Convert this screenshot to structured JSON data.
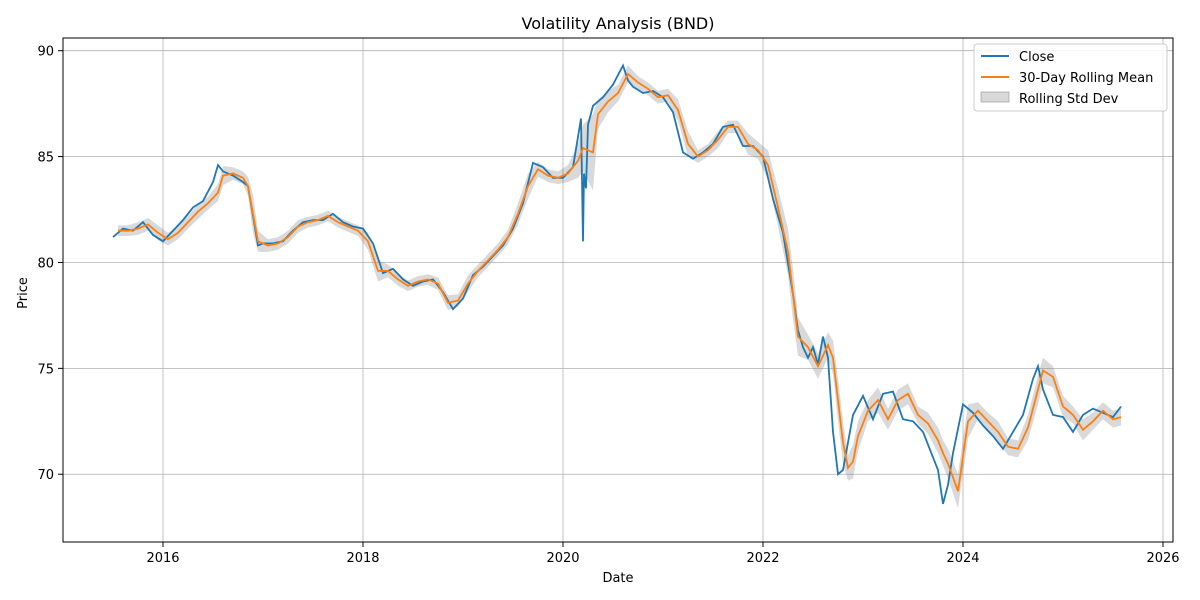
{
  "chart_data": {
    "type": "line",
    "title": "Volatility Analysis (BND)",
    "xlabel": "Date",
    "ylabel": "Price",
    "xlim": [
      2015.0,
      2026.1
    ],
    "ylim": [
      66.8,
      90.6
    ],
    "x_ticks": [
      2016,
      2018,
      2020,
      2022,
      2024,
      2026
    ],
    "x_tick_labels": [
      "2016",
      "2018",
      "2020",
      "2022",
      "2024",
      "2026"
    ],
    "y_ticks": [
      70,
      75,
      80,
      85,
      90
    ],
    "y_tick_labels": [
      "70",
      "75",
      "80",
      "85",
      "90"
    ],
    "grid": true,
    "legend_position": "top-right",
    "legend": {
      "close": "Close",
      "mean": "30-Day Rolling Mean",
      "std": "Rolling Std Dev"
    },
    "colors": {
      "close": "#1f77b4",
      "mean": "#ff7f0e",
      "band": "#808080"
    },
    "series": [
      {
        "name": "Close",
        "x": [
          2015.5,
          2015.6,
          2015.7,
          2015.8,
          2015.9,
          2016.0,
          2016.1,
          2016.2,
          2016.3,
          2016.4,
          2016.5,
          2016.55,
          2016.6,
          2016.7,
          2016.8,
          2016.85,
          2016.9,
          2016.95,
          2017.0,
          2017.1,
          2017.2,
          2017.3,
          2017.4,
          2017.5,
          2017.6,
          2017.7,
          2017.8,
          2017.9,
          2018.0,
          2018.1,
          2018.2,
          2018.3,
          2018.4,
          2018.5,
          2018.6,
          2018.7,
          2018.8,
          2018.9,
          2019.0,
          2019.1,
          2019.2,
          2019.3,
          2019.4,
          2019.5,
          2019.6,
          2019.7,
          2019.8,
          2019.9,
          2020.0,
          2020.1,
          2020.18,
          2020.2,
          2020.21,
          2020.23,
          2020.25,
          2020.3,
          2020.4,
          2020.5,
          2020.6,
          2020.65,
          2020.7,
          2020.8,
          2020.9,
          2021.0,
          2021.1,
          2021.2,
          2021.3,
          2021.4,
          2021.5,
          2021.6,
          2021.7,
          2021.8,
          2021.9,
          2022.0,
          2022.1,
          2022.2,
          2022.3,
          2022.35,
          2022.4,
          2022.45,
          2022.5,
          2022.55,
          2022.6,
          2022.65,
          2022.7,
          2022.75,
          2022.8,
          2022.85,
          2022.9,
          2023.0,
          2023.1,
          2023.2,
          2023.3,
          2023.4,
          2023.5,
          2023.6,
          2023.7,
          2023.75,
          2023.8,
          2023.85,
          2023.9,
          2024.0,
          2024.1,
          2024.2,
          2024.3,
          2024.4,
          2024.5,
          2024.6,
          2024.7,
          2024.75,
          2024.8,
          2024.9,
          2025.0,
          2025.1,
          2025.2,
          2025.3,
          2025.4,
          2025.5,
          2025.58
        ],
        "y": [
          81.2,
          81.6,
          81.5,
          81.9,
          81.3,
          81.0,
          81.5,
          82.0,
          82.6,
          82.9,
          83.8,
          84.6,
          84.3,
          84.1,
          83.8,
          83.6,
          82.2,
          80.8,
          80.9,
          80.9,
          81.0,
          81.5,
          81.9,
          82.0,
          82.0,
          82.3,
          81.9,
          81.7,
          81.6,
          80.9,
          79.5,
          79.7,
          79.2,
          78.9,
          79.1,
          79.2,
          78.6,
          77.8,
          78.3,
          79.4,
          79.8,
          80.3,
          80.8,
          81.6,
          82.8,
          84.7,
          84.5,
          84.0,
          84.0,
          84.5,
          86.8,
          81.0,
          84.2,
          83.5,
          86.5,
          87.4,
          87.8,
          88.4,
          89.3,
          88.6,
          88.3,
          88.0,
          88.1,
          87.8,
          87.1,
          85.2,
          84.9,
          85.2,
          85.6,
          86.4,
          86.5,
          85.5,
          85.5,
          85.0,
          83.0,
          81.4,
          78.5,
          76.8,
          76.0,
          75.5,
          76.0,
          75.2,
          76.5,
          75.5,
          72.0,
          70.0,
          70.2,
          71.5,
          72.8,
          73.7,
          72.6,
          73.8,
          73.9,
          72.6,
          72.5,
          72.0,
          70.8,
          70.2,
          68.6,
          69.5,
          71.0,
          73.3,
          72.9,
          72.3,
          71.8,
          71.2,
          72.0,
          72.8,
          74.5,
          75.1,
          74.0,
          72.8,
          72.7,
          72.0,
          72.8,
          73.1,
          72.9,
          72.7,
          73.2
        ]
      },
      {
        "name": "30-Day Rolling Mean",
        "x": [
          2015.55,
          2015.65,
          2015.75,
          2015.85,
          2015.95,
          2016.05,
          2016.15,
          2016.25,
          2016.35,
          2016.45,
          2016.55,
          2016.6,
          2016.7,
          2016.8,
          2016.85,
          2016.9,
          2016.95,
          2017.05,
          2017.15,
          2017.25,
          2017.35,
          2017.45,
          2017.55,
          2017.65,
          2017.75,
          2017.85,
          2017.95,
          2018.05,
          2018.15,
          2018.25,
          2018.35,
          2018.45,
          2018.55,
          2018.65,
          2018.75,
          2018.85,
          2018.95,
          2019.05,
          2019.15,
          2019.25,
          2019.35,
          2019.45,
          2019.55,
          2019.65,
          2019.75,
          2019.85,
          2019.95,
          2020.05,
          2020.15,
          2020.2,
          2020.3,
          2020.35,
          2020.45,
          2020.55,
          2020.65,
          2020.75,
          2020.85,
          2020.95,
          2021.05,
          2021.15,
          2021.25,
          2021.35,
          2021.45,
          2021.55,
          2021.65,
          2021.75,
          2021.85,
          2021.95,
          2022.05,
          2022.15,
          2022.25,
          2022.3,
          2022.35,
          2022.45,
          2022.55,
          2022.65,
          2022.7,
          2022.75,
          2022.8,
          2022.85,
          2022.9,
          2022.95,
          2023.05,
          2023.15,
          2023.25,
          2023.35,
          2023.45,
          2023.55,
          2023.65,
          2023.75,
          2023.8,
          2023.85,
          2023.95,
          2024.05,
          2024.15,
          2024.25,
          2024.35,
          2024.45,
          2024.55,
          2024.65,
          2024.75,
          2024.8,
          2024.9,
          2025.0,
          2025.1,
          2025.2,
          2025.3,
          2025.4,
          2025.5,
          2025.58
        ],
        "y": [
          81.5,
          81.5,
          81.6,
          81.8,
          81.4,
          81.1,
          81.4,
          81.9,
          82.4,
          82.8,
          83.3,
          84.1,
          84.2,
          84.0,
          83.6,
          82.3,
          81.0,
          80.8,
          80.9,
          81.2,
          81.7,
          81.9,
          82.0,
          82.2,
          81.9,
          81.7,
          81.5,
          81.0,
          79.6,
          79.6,
          79.2,
          78.9,
          79.1,
          79.2,
          79.0,
          78.1,
          78.2,
          79.0,
          79.6,
          80.1,
          80.6,
          81.2,
          82.3,
          83.6,
          84.4,
          84.1,
          84.0,
          84.2,
          84.8,
          85.4,
          85.2,
          87.0,
          87.6,
          88.0,
          88.9,
          88.5,
          88.2,
          87.8,
          87.9,
          87.2,
          85.6,
          85.0,
          85.3,
          85.8,
          86.4,
          86.4,
          85.6,
          85.3,
          84.6,
          82.6,
          80.5,
          78.5,
          76.5,
          76.0,
          75.1,
          76.1,
          75.5,
          73.5,
          71.5,
          70.3,
          70.6,
          71.8,
          73.0,
          73.5,
          72.6,
          73.5,
          73.8,
          72.8,
          72.4,
          71.6,
          71.0,
          70.5,
          69.2,
          72.5,
          73.0,
          72.5,
          72.0,
          71.3,
          71.2,
          72.2,
          74.0,
          74.9,
          74.6,
          73.2,
          72.8,
          72.1,
          72.5,
          73.0,
          72.6,
          72.7
        ]
      }
    ],
    "band": {
      "name": "Rolling Std Dev",
      "note_units": "price",
      "widths": [
        0.25,
        0.25,
        0.3,
        0.3,
        0.35,
        0.3,
        0.3,
        0.3,
        0.35,
        0.3,
        0.4,
        0.45,
        0.3,
        0.3,
        0.45,
        0.9,
        0.5,
        0.3,
        0.3,
        0.3,
        0.3,
        0.25,
        0.25,
        0.25,
        0.25,
        0.25,
        0.25,
        0.4,
        0.5,
        0.3,
        0.3,
        0.25,
        0.25,
        0.25,
        0.3,
        0.35,
        0.3,
        0.4,
        0.3,
        0.3,
        0.3,
        0.35,
        0.5,
        0.6,
        0.35,
        0.3,
        0.3,
        0.4,
        0.8,
        1.1,
        1.8,
        0.7,
        0.5,
        0.4,
        0.4,
        0.3,
        0.3,
        0.3,
        0.3,
        0.5,
        0.6,
        0.3,
        0.3,
        0.4,
        0.3,
        0.3,
        0.5,
        0.4,
        0.7,
        0.9,
        1.1,
        1.2,
        0.9,
        0.6,
        0.6,
        0.6,
        0.8,
        1.0,
        1.0,
        0.6,
        0.8,
        0.7,
        0.5,
        0.6,
        0.5,
        0.5,
        0.5,
        0.4,
        0.5,
        0.6,
        0.6,
        0.7,
        0.8,
        0.8,
        0.4,
        0.4,
        0.5,
        0.4,
        0.4,
        0.6,
        0.7,
        0.6,
        0.5,
        0.5,
        0.4,
        0.5,
        0.4,
        0.4,
        0.4,
        0.4
      ]
    }
  }
}
